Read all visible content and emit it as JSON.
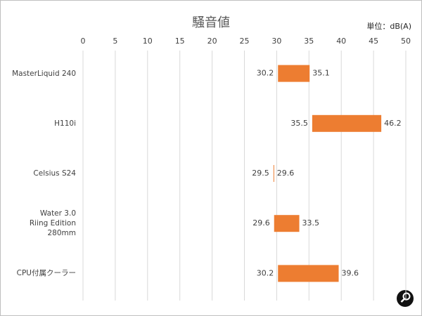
{
  "chart_data": {
    "type": "floating-bar",
    "title": "騒音値",
    "unit_label": "単位：dB(A)",
    "categories": [
      "MasterLiquid 240",
      "H110i",
      "Celsius S24",
      "Water 3.0\nRiing Edition 280mm",
      "CPU付属クーラー"
    ],
    "low": [
      30.2,
      35.5,
      29.5,
      29.6,
      30.2
    ],
    "high": [
      35.1,
      46.2,
      29.6,
      33.5,
      39.6
    ],
    "color": "#ed7d31",
    "xlim": [
      0,
      50
    ],
    "xticks": [
      0,
      5,
      10,
      15,
      20,
      25,
      30,
      35,
      40,
      45,
      50
    ],
    "grid": true
  }
}
